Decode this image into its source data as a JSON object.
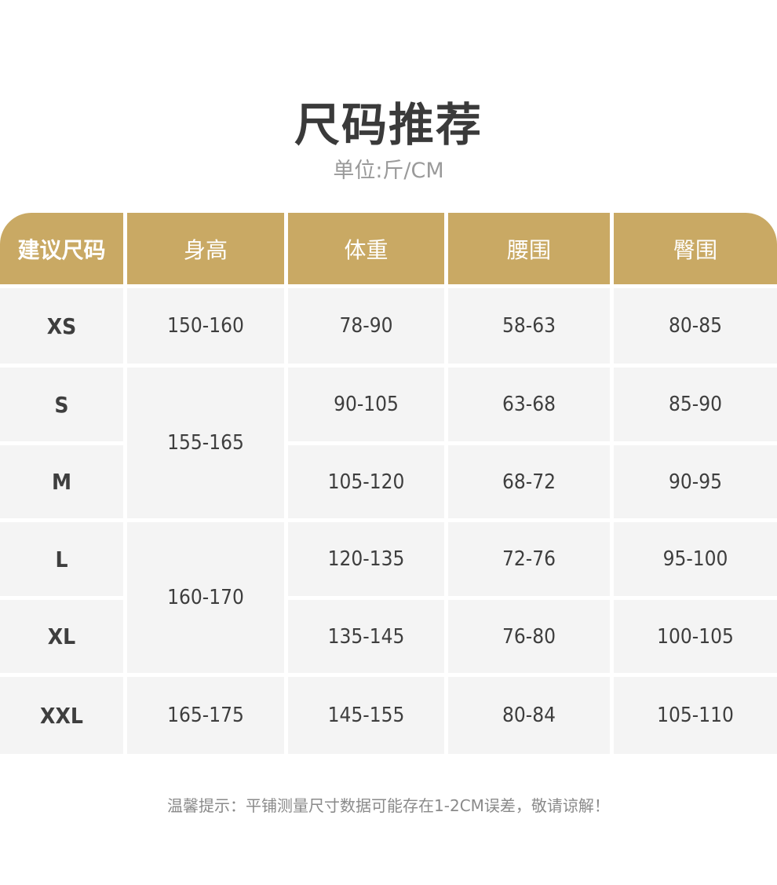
{
  "title": "尺码推荐",
  "subtitle": "单位:斤/CM",
  "colors": {
    "header_bg": "#C9A964",
    "cell_bg": "#f4f4f4"
  },
  "table": {
    "headers": [
      "建议尺码",
      "身高",
      "体重",
      "腰围",
      "臀围"
    ],
    "rows": [
      {
        "size": "XS",
        "weight": "78-90",
        "waist": "58-63",
        "hip": "80-85"
      },
      {
        "size": "S",
        "weight": "90-105",
        "waist": "63-68",
        "hip": "85-90"
      },
      {
        "size": "M",
        "weight": "105-120",
        "waist": "68-72",
        "hip": "90-95"
      },
      {
        "size": "L",
        "weight": "120-135",
        "waist": "72-76",
        "hip": "95-100"
      },
      {
        "size": "XL",
        "weight": "135-145",
        "waist": "76-80",
        "hip": "100-105"
      },
      {
        "size": "XXL",
        "weight": "145-155",
        "waist": "80-84",
        "hip": "105-110"
      }
    ],
    "heights": [
      "150-160",
      "155-165",
      "160-170",
      "165-175"
    ]
  },
  "note": "温馨提示：平铺测量尺寸数据可能存在1-2CM误差，敬请谅解！"
}
